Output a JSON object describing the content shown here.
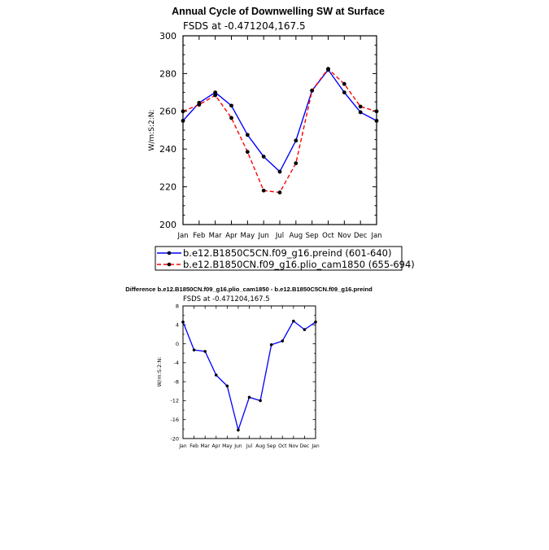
{
  "chart_data": [
    {
      "type": "line",
      "title": "Annual Cycle of Downwelling SW at Surface",
      "subtitle": "FSDS at -0.471204,167.5",
      "ylabel": "W/m:S:2:N:",
      "xlabel": "",
      "ylim": [
        200,
        300
      ],
      "yticks": [
        "200",
        "220",
        "240",
        "260",
        "280",
        "300"
      ],
      "categories": [
        "Jan",
        "Feb",
        "Mar",
        "Apr",
        "May",
        "Jun",
        "Jul",
        "Aug",
        "Sep",
        "Oct",
        "Nov",
        "Dec",
        "Jan"
      ],
      "legend_position": "bottom",
      "series": [
        {
          "name": "b.e12.B1850C5CN.f09_g16.preind (601-640)",
          "color": "#0000ff",
          "dash": "solid",
          "values": [
            255,
            264.5,
            270,
            263,
            247.5,
            236,
            228,
            244.5,
            271,
            282,
            270,
            259.5,
            255
          ]
        },
        {
          "name": "b.e12.B1850CN.f09_g16.plio_cam1850 (655-694)",
          "color": "#ff0000",
          "dash": "dashed",
          "values": [
            260,
            263.5,
            268.5,
            256.5,
            238.5,
            218,
            217,
            232.5,
            271,
            282.5,
            274.5,
            262.5,
            260
          ]
        }
      ]
    },
    {
      "type": "line",
      "title": "Difference b.e12.B1850CN.f09_g16.plio_cam1850 - b.e12.B1850C5CN.f09_g16.preind",
      "subtitle": "FSDS at -0.471204,167.5",
      "ylabel": "W/m:S:2:N:",
      "xlabel": "",
      "ylim": [
        -20,
        8
      ],
      "yticks": [
        "-20",
        "-16",
        "-12",
        "-8",
        "-4",
        "0",
        "4",
        "8"
      ],
      "categories": [
        "Jan",
        "Feb",
        "Mar",
        "Apr",
        "May",
        "Jun",
        "Jul",
        "Aug",
        "Sep",
        "Oct",
        "Nov",
        "Dec",
        "Jan"
      ],
      "series": [
        {
          "color": "#0000ff",
          "values": [
            4.6,
            -1.3,
            -1.6,
            -6.6,
            -8.9,
            -18.2,
            -11.3,
            -12.0,
            -0.2,
            0.6,
            4.8,
            3.0,
            4.6
          ]
        }
      ]
    }
  ]
}
